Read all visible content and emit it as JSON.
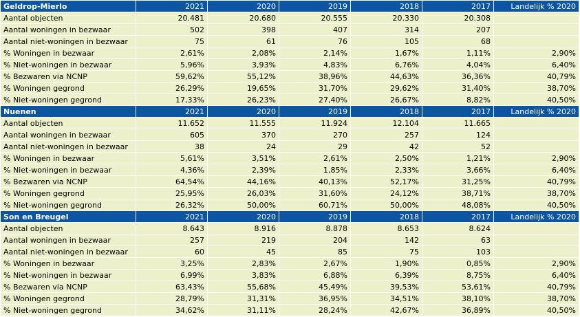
{
  "columns": [
    "2021",
    "2020",
    "2019",
    "2018",
    "2017"
  ],
  "national_header": "Landelijk % 2020",
  "sections": [
    {
      "name": "Geldrop-Mierlo",
      "rows": [
        {
          "label": "Aantal objecten",
          "values": [
            "20.481",
            "20.680",
            "20.555",
            "20.330",
            "20.308"
          ],
          "national": ""
        },
        {
          "label": "Aantal woningen in bezwaar",
          "values": [
            "502",
            "398",
            "407",
            "314",
            "207"
          ],
          "national": ""
        },
        {
          "label": "Aantal niet-woningen in bezwaar",
          "values": [
            "75",
            "61",
            "76",
            "105",
            "68"
          ],
          "national": ""
        },
        {
          "label": "% Woningen in bezwaar",
          "values": [
            "2,61%",
            "2,08%",
            "2,14%",
            "1,67%",
            "1,11%"
          ],
          "national": "2,90%"
        },
        {
          "label": "% Niet-woningen in bezwaar",
          "values": [
            "5,96%",
            "3,93%",
            "4,83%",
            "6,76%",
            "4,04%"
          ],
          "national": "6,40%"
        },
        {
          "label": "% Bezwaren via NCNP",
          "values": [
            "59,62%",
            "55,12%",
            "38,96%",
            "44,63%",
            "36,36%"
          ],
          "national": "40,79%"
        },
        {
          "label": "% Woningen gegrond",
          "values": [
            "26,29%",
            "19,65%",
            "31,70%",
            "29,62%",
            "31,40%"
          ],
          "national": "38,70%"
        },
        {
          "label": "% Niet-woningen gegrond",
          "values": [
            "17,33%",
            "26,23%",
            "27,40%",
            "26,67%",
            "8,82%"
          ],
          "national": "40,50%"
        }
      ]
    },
    {
      "name": "Nuenen",
      "rows": [
        {
          "label": "Aantal objecten",
          "values": [
            "11.652",
            "11.555",
            "11.924",
            "12.104",
            "11.665"
          ],
          "national": ""
        },
        {
          "label": "Aantal woningen in bezwaar",
          "values": [
            "605",
            "370",
            "270",
            "257",
            "124"
          ],
          "national": ""
        },
        {
          "label": "Aantal niet-woningen in bezwaar",
          "values": [
            "38",
            "24",
            "29",
            "42",
            "52"
          ],
          "national": ""
        },
        {
          "label": "% Woningen in bezwaar",
          "values": [
            "5,61%",
            "3,51%",
            "2,61%",
            "2,50%",
            "1,21%"
          ],
          "national": "2,90%"
        },
        {
          "label": "% Niet-woningen in bezwaar",
          "values": [
            "4,36%",
            "2,39%",
            "1,85%",
            "2,33%",
            "3,66%"
          ],
          "national": "6,40%"
        },
        {
          "label": "% Bezwaren via NCNP",
          "values": [
            "64,54%",
            "44,16%",
            "40,13%",
            "52,17%",
            "31,25%"
          ],
          "national": "40,79%"
        },
        {
          "label": "% Woningen gegrond",
          "values": [
            "25,95%",
            "26,03%",
            "31,60%",
            "24,12%",
            "38,71%"
          ],
          "national": "38,70%"
        },
        {
          "label": "% Niet-woningen gegrond",
          "values": [
            "26,32%",
            "50,00%",
            "60,71%",
            "50,00%",
            "48,08%"
          ],
          "national": "40,50%"
        }
      ]
    },
    {
      "name": "Son en Breugel",
      "rows": [
        {
          "label": "Aantal objecten",
          "values": [
            "8.643",
            "8.916",
            "8.878",
            "8.653",
            "8.624"
          ],
          "national": ""
        },
        {
          "label": "Aantal woningen in bezwaar",
          "values": [
            "257",
            "219",
            "204",
            "142",
            "63"
          ],
          "national": ""
        },
        {
          "label": "Aantal niet-woningen in bezwaar",
          "values": [
            "60",
            "45",
            "85",
            "75",
            "103"
          ],
          "national": ""
        },
        {
          "label": "% Woningen in bezwaar",
          "values": [
            "3,25%",
            "2,83%",
            "2,67%",
            "1,90%",
            "0,85%"
          ],
          "national": "2,90%"
        },
        {
          "label": "% Niet-woningen in bezwaar",
          "values": [
            "6,99%",
            "3,83%",
            "6,88%",
            "6,39%",
            "8,75%"
          ],
          "national": "6,40%"
        },
        {
          "label": "% Bezwaren via NCNP",
          "values": [
            "63,43%",
            "55,68%",
            "45,49%",
            "39,53%",
            "53,61%"
          ],
          "national": "40,79%"
        },
        {
          "label": "% Woningen gegrond",
          "values": [
            "28,79%",
            "31,31%",
            "36,95%",
            "34,51%",
            "38,10%"
          ],
          "national": "38,70%"
        },
        {
          "label": "% Niet-woningen gegrond",
          "values": [
            "34,62%",
            "31,11%",
            "28,24%",
            "42,67%",
            "36,89%"
          ],
          "national": "40,50%"
        }
      ]
    }
  ],
  "colors": {
    "header_bg": "#0b55a3",
    "header_text": "#ffffff",
    "row_bg": "#ecf0cb"
  }
}
